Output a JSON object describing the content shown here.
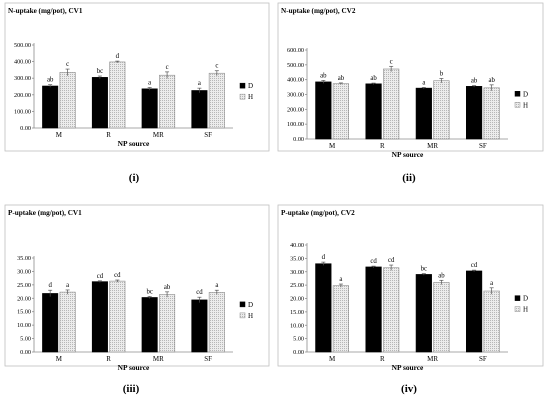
{
  "colors": {
    "D": "#000000",
    "H": "#ececec",
    "H_dots": "#9a9a9a",
    "frame": "#bfbfbf",
    "axis": "#8c8c8c"
  },
  "legend": {
    "D": "D",
    "H": "H"
  },
  "chart_data": [
    {
      "type": "bar",
      "panel_label": "(i)",
      "title": "N-uptake (mg/pot), CV1",
      "xlabel": "NP source",
      "ylabel": "",
      "categories": [
        "M",
        "R",
        "MR",
        "SF"
      ],
      "ylim": [
        0,
        500
      ],
      "ytick_step": 100,
      "ytick_labels": [
        "0.00",
        "100.00",
        "200.00",
        "300.00",
        "400.00",
        "500.00"
      ],
      "legend_position": "right",
      "grid": false,
      "series": [
        {
          "name": "D",
          "values": [
            253,
            305,
            236,
            226
          ],
          "errors": [
            8,
            8,
            8,
            14
          ],
          "letters": [
            "ab",
            "bc",
            "a",
            "a"
          ]
        },
        {
          "name": "H",
          "values": [
            335,
            398,
            318,
            330
          ],
          "errors": [
            20,
            5,
            20,
            15
          ],
          "letters": [
            "c",
            "d",
            "c",
            "c"
          ]
        }
      ]
    },
    {
      "type": "bar",
      "panel_label": "(ii)",
      "title": "N-uptake (mg/pot), CV2",
      "xlabel": "NP source",
      "ylabel": "",
      "categories": [
        "M",
        "R",
        "MR",
        "SF"
      ],
      "ylim": [
        0,
        600
      ],
      "ytick_step": 100,
      "ytick_labels": [
        "0.00",
        "100.00",
        "200.00",
        "300.00",
        "400.00",
        "500.00",
        "600.00"
      ],
      "legend_position": "right",
      "grid": false,
      "series": [
        {
          "name": "D",
          "values": [
            385,
            372,
            343,
            355
          ],
          "errors": [
            10,
            5,
            5,
            5
          ],
          "letters": [
            "ab",
            "ab",
            "a",
            "ab"
          ]
        },
        {
          "name": "H",
          "values": [
            373,
            472,
            393,
            345
          ],
          "errors": [
            5,
            18,
            15,
            20
          ],
          "letters": [
            "ab",
            "c",
            "b",
            "ab"
          ]
        }
      ]
    },
    {
      "type": "bar",
      "panel_label": "(iii)",
      "title": "P-uptake (mg/pot), CV1",
      "xlabel": "NP source",
      "ylabel": "",
      "categories": [
        "M",
        "R",
        "MR",
        "SF"
      ],
      "ylim": [
        0,
        35
      ],
      "ytick_step": 5,
      "ytick_labels": [
        "0.00",
        "5.00",
        "10.00",
        "15.00",
        "20.00",
        "25.00",
        "30.00",
        "35.00"
      ],
      "legend_position": "right",
      "grid": false,
      "series": [
        {
          "name": "D",
          "values": [
            21.8,
            26.2,
            20.3,
            19.4
          ],
          "errors": [
            1.2,
            0.3,
            0.4,
            1.0
          ],
          "letters": [
            "d",
            "cd",
            "bc",
            "cd"
          ]
        },
        {
          "name": "H",
          "values": [
            22.3,
            26.4,
            21.4,
            22.2
          ],
          "errors": [
            0.8,
            0.4,
            1.0,
            0.8
          ],
          "letters": [
            "a",
            "cd",
            "ab",
            "a"
          ]
        }
      ]
    },
    {
      "type": "bar",
      "panel_label": "(iv)",
      "title": "P-uptake (mg/pot), CV2",
      "xlabel": "NP source",
      "ylabel": "",
      "categories": [
        "M",
        "R",
        "MR",
        "SF"
      ],
      "ylim": [
        0,
        40
      ],
      "ytick_step": 5,
      "ytick_labels": [
        "0.00",
        "5.00",
        "10.00",
        "15.00",
        "20.00",
        "25.00",
        "30.00",
        "35.00",
        "40.00"
      ],
      "legend_position": "right",
      "grid": false,
      "series": [
        {
          "name": "D",
          "values": [
            33.0,
            31.8,
            29.0,
            30.3
          ],
          "errors": [
            0.6,
            0.3,
            0.3,
            0.3
          ],
          "letters": [
            "d",
            "cd",
            "bc",
            "cd"
          ]
        },
        {
          "name": "H",
          "values": [
            24.8,
            31.5,
            26.0,
            22.8
          ],
          "errors": [
            0.6,
            1.0,
            0.8,
            1.2
          ],
          "letters": [
            "a",
            "cd",
            "ab",
            "a"
          ]
        }
      ]
    }
  ]
}
